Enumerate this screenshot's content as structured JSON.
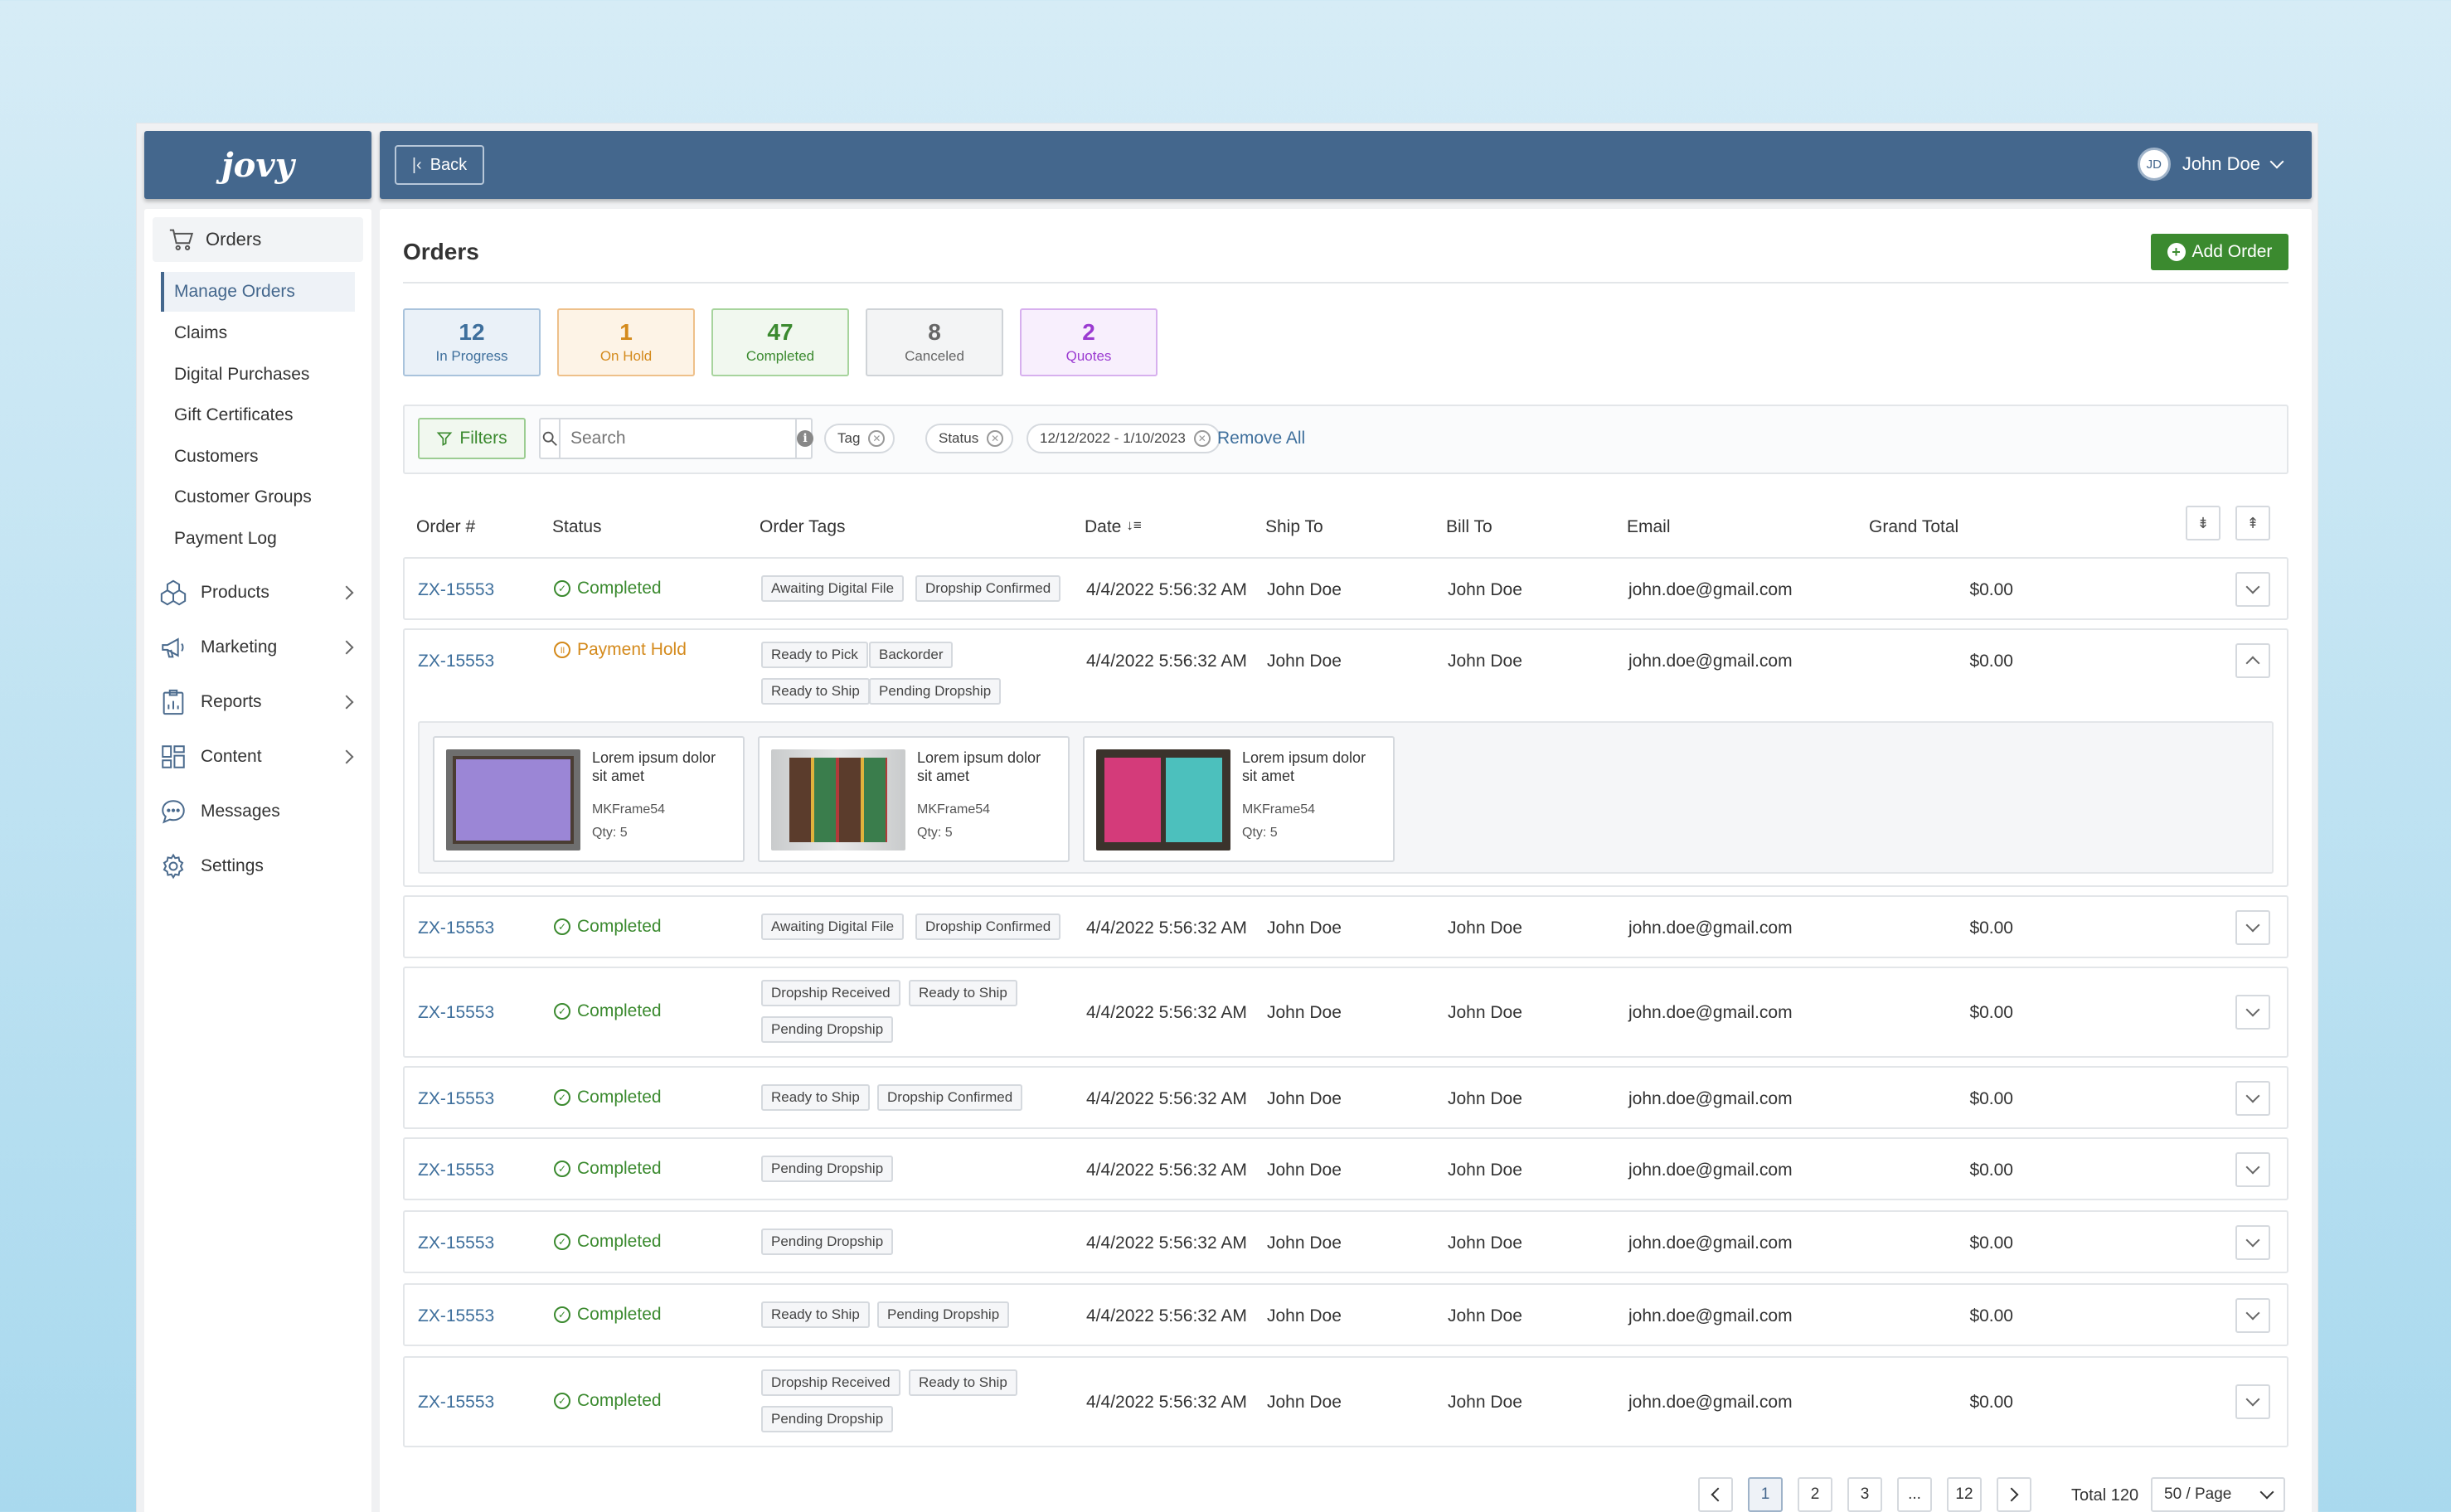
{
  "app": {
    "logo": "jovy"
  },
  "topbar": {
    "back_label": "Back",
    "user_initials": "JD",
    "user_name": "John Doe"
  },
  "sidebar": {
    "orders_label": "Orders",
    "order_items": [
      "Manage Orders",
      "Claims",
      "Digital Purchases",
      "Gift Certificates",
      "Customers",
      "Customer Groups",
      "Payment Log"
    ],
    "nav": [
      {
        "label": "Products",
        "icon": "products-icon"
      },
      {
        "label": "Marketing",
        "icon": "megaphone-icon"
      },
      {
        "label": "Reports",
        "icon": "reports-icon"
      },
      {
        "label": "Content",
        "icon": "content-icon"
      },
      {
        "label": "Messages",
        "icon": "messages-icon"
      },
      {
        "label": "Settings",
        "icon": "gear-icon"
      }
    ]
  },
  "page": {
    "title": "Orders",
    "add_label": "Add Order"
  },
  "stats": [
    {
      "count": "12",
      "label": "In Progress",
      "color": "#3e6f9c"
    },
    {
      "count": "1",
      "label": "On Hold",
      "color": "#d48a1c"
    },
    {
      "count": "47",
      "label": "Completed",
      "color": "#3b8a2f"
    },
    {
      "count": "8",
      "label": "Canceled",
      "color": "#666666"
    },
    {
      "count": "2",
      "label": "Quotes",
      "color": "#9b3bd1"
    }
  ],
  "filters": {
    "button_label": "Filters",
    "search_placeholder": "Search",
    "chips": [
      "Tag",
      "Status",
      "12/12/2022 - 1/10/2023"
    ],
    "remove_all": "Remove All"
  },
  "table": {
    "headers": {
      "order": "Order #",
      "status": "Status",
      "tags": "Order Tags",
      "date": "Date",
      "ship_to": "Ship To",
      "bill_to": "Bill To",
      "email": "Email",
      "total": "Grand Total"
    },
    "rows": [
      {
        "order": "ZX-15553",
        "status": "Completed",
        "tags": [
          "Awaiting Digital File",
          "Dropship Confirmed"
        ],
        "date": "4/4/2022 5:56:32 AM",
        "ship_to": "John Doe",
        "bill_to": "John Doe",
        "email": "john.doe@gmail.com",
        "total": "$0.00"
      },
      {
        "order": "ZX-15553",
        "status": "Payment Hold",
        "tags": [
          "Ready to Pick",
          "Backorder",
          "Ready to Ship",
          "Pending Dropship"
        ],
        "date": "4/4/2022 5:56:32 AM",
        "ship_to": "John Doe",
        "bill_to": "John Doe",
        "email": "john.doe@gmail.com",
        "total": "$0.00",
        "items": [
          {
            "title": "Lorem ipsum dolor sit amet",
            "sku": "MKFrame54",
            "qty": "Qty: 5"
          },
          {
            "title": "Lorem ipsum dolor sit amet",
            "sku": "MKFrame54",
            "qty": "Qty: 5"
          },
          {
            "title": "Lorem ipsum dolor sit amet",
            "sku": "MKFrame54",
            "qty": "Qty: 5"
          }
        ]
      },
      {
        "order": "ZX-15553",
        "status": "Completed",
        "tags": [
          "Awaiting Digital File",
          "Dropship Confirmed"
        ],
        "date": "4/4/2022 5:56:32 AM",
        "ship_to": "John Doe",
        "bill_to": "John Doe",
        "email": "john.doe@gmail.com",
        "total": "$0.00"
      },
      {
        "order": "ZX-15553",
        "status": "Completed",
        "tags": [
          "Dropship Received",
          "Ready to Ship",
          "Pending Dropship"
        ],
        "date": "4/4/2022 5:56:32 AM",
        "ship_to": "John Doe",
        "bill_to": "John Doe",
        "email": "john.doe@gmail.com",
        "total": "$0.00"
      },
      {
        "order": "ZX-15553",
        "status": "Completed",
        "tags": [
          "Ready to Ship",
          "Dropship Confirmed"
        ],
        "date": "4/4/2022 5:56:32 AM",
        "ship_to": "John Doe",
        "bill_to": "John Doe",
        "email": "john.doe@gmail.com",
        "total": "$0.00"
      },
      {
        "order": "ZX-15553",
        "status": "Completed",
        "tags": [
          "Pending Dropship"
        ],
        "date": "4/4/2022 5:56:32 AM",
        "ship_to": "John Doe",
        "bill_to": "John Doe",
        "email": "john.doe@gmail.com",
        "total": "$0.00"
      },
      {
        "order": "ZX-15553",
        "status": "Completed",
        "tags": [
          "Pending Dropship"
        ],
        "date": "4/4/2022 5:56:32 AM",
        "ship_to": "John Doe",
        "bill_to": "John Doe",
        "email": "john.doe@gmail.com",
        "total": "$0.00"
      },
      {
        "order": "ZX-15553",
        "status": "Completed",
        "tags": [
          "Ready to Ship",
          "Pending Dropship"
        ],
        "date": "4/4/2022 5:56:32 AM",
        "ship_to": "John Doe",
        "bill_to": "John Doe",
        "email": "john.doe@gmail.com",
        "total": "$0.00"
      },
      {
        "order": "ZX-15553",
        "status": "Completed",
        "tags": [
          "Dropship Received",
          "Ready to Ship",
          "Pending Dropship"
        ],
        "date": "4/4/2022 5:56:32 AM",
        "ship_to": "John Doe",
        "bill_to": "John Doe",
        "email": "john.doe@gmail.com",
        "total": "$0.00"
      }
    ]
  },
  "pagination": {
    "pages": [
      "1",
      "2",
      "3",
      "...",
      "12"
    ],
    "current": "1",
    "total": "Total 120",
    "page_size": "50 / Page"
  }
}
